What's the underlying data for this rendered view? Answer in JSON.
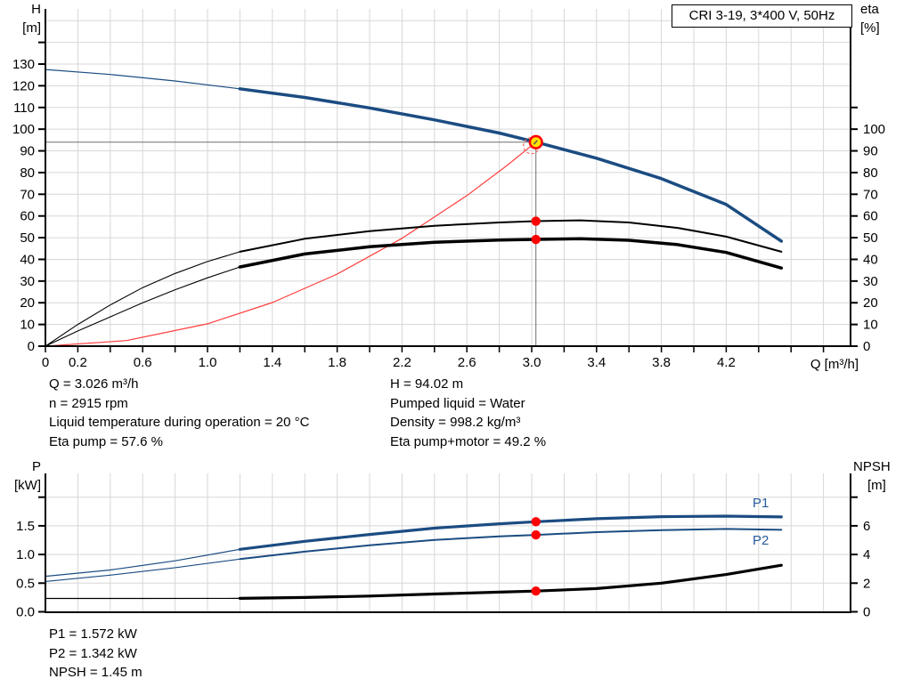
{
  "title_box": {
    "label": "CRI 3-19, 3*400 V, 50Hz"
  },
  "axis_titles": {
    "head": "H",
    "head_unit": "[m]",
    "eta": "eta",
    "eta_unit": "[%]",
    "flow": "Q [m³/h]",
    "power": "P",
    "power_unit": "[kW]",
    "npsh": "NPSH",
    "npsh_unit": "[m]"
  },
  "labels": {
    "p1": "P1",
    "p2": "P2"
  },
  "info_top_left": [
    "Q = 3.026 m³/h",
    "n = 2915 rpm",
    "Liquid temperature during operation = 20 °C",
    "Eta pump = 57.6 %"
  ],
  "info_top_right": [
    "H = 94.02 m",
    "Pumped liquid = Water",
    "Density = 998.2 kg/m³",
    "Eta pump+motor = 49.2 %"
  ],
  "info_bottom": [
    "P1 = 1.572 kW",
    "P2 = 1.342 kW",
    "NPSH = 1.45 m"
  ],
  "colors": {
    "curve_blue": "#1b4c82",
    "curve_black": "#000000",
    "curve_red": "#ff3c3c",
    "dot_red": "#ff0000",
    "duty_fill": "#ffe100",
    "duty_stroke": "#ff0000",
    "grid": "#d7d7d7",
    "crosshair": "#6e6e6e",
    "axis": "#000000",
    "label_blue": "#275b9c"
  },
  "chart_data": [
    {
      "type": "line",
      "title": "CRI 3-19, 3*400 V, 50Hz",
      "xlabel": "Q [m³/h]",
      "x_range": [
        0,
        4.95
      ],
      "x_ticks": [
        {
          "v": 0,
          "l": "0"
        },
        {
          "v": 0.2,
          "l": "0.2"
        },
        {
          "v": 0.4,
          "l": ""
        },
        {
          "v": 0.6,
          "l": "0.6"
        },
        {
          "v": 0.8,
          "l": ""
        },
        {
          "v": 1,
          "l": "1.0"
        },
        {
          "v": 1.2,
          "l": ""
        },
        {
          "v": 1.4,
          "l": "1.4"
        },
        {
          "v": 1.6,
          "l": ""
        },
        {
          "v": 1.8,
          "l": "1.8"
        },
        {
          "v": 2,
          "l": ""
        },
        {
          "v": 2.2,
          "l": "2.2"
        },
        {
          "v": 2.4,
          "l": ""
        },
        {
          "v": 2.6,
          "l": "2.6"
        },
        {
          "v": 2.8,
          "l": ""
        },
        {
          "v": 3,
          "l": "3.0"
        },
        {
          "v": 3.2,
          "l": ""
        },
        {
          "v": 3.4,
          "l": "3.4"
        },
        {
          "v": 3.6,
          "l": ""
        },
        {
          "v": 3.8,
          "l": "3.8"
        },
        {
          "v": 4,
          "l": ""
        },
        {
          "v": 4.2,
          "l": "4.2"
        },
        {
          "v": 4.4,
          "l": ""
        },
        {
          "v": 4.6,
          "l": ""
        },
        {
          "v": 4.8,
          "l": ""
        }
      ],
      "left_axis": {
        "label": "H [m]",
        "range": [
          0,
          155
        ],
        "ticks": [
          {
            "v": 0,
            "l": "0"
          },
          {
            "v": 10,
            "l": "10"
          },
          {
            "v": 20,
            "l": "20"
          },
          {
            "v": 30,
            "l": "30"
          },
          {
            "v": 40,
            "l": "40"
          },
          {
            "v": 50,
            "l": "50"
          },
          {
            "v": 60,
            "l": "60"
          },
          {
            "v": 70,
            "l": "70"
          },
          {
            "v": 80,
            "l": "80"
          },
          {
            "v": 90,
            "l": "90"
          },
          {
            "v": 100,
            "l": "100"
          },
          {
            "v": 110,
            "l": "110"
          },
          {
            "v": 120,
            "l": "120"
          },
          {
            "v": 130,
            "l": "130"
          },
          {
            "v": 140,
            "l": ""
          }
        ]
      },
      "right_axis": {
        "label": "eta [%]",
        "range": [
          0,
          155
        ],
        "ticks": [
          {
            "v": 0,
            "l": "0"
          },
          {
            "v": 10,
            "l": "10"
          },
          {
            "v": 20,
            "l": "20"
          },
          {
            "v": 30,
            "l": "30"
          },
          {
            "v": 40,
            "l": "40"
          },
          {
            "v": 50,
            "l": "50"
          },
          {
            "v": 60,
            "l": "60"
          },
          {
            "v": 70,
            "l": "70"
          },
          {
            "v": 80,
            "l": "80"
          },
          {
            "v": 90,
            "l": "90"
          },
          {
            "v": 100,
            "l": "100"
          },
          {
            "v": 110,
            "l": ""
          }
        ]
      },
      "series": [
        {
          "name": "system-curve",
          "axis": "left",
          "color": "curve_red",
          "width": 1.2,
          "points": [
            [
              0,
              0
            ],
            [
              0.5,
              2.6
            ],
            [
              1.0,
              10.3
            ],
            [
              1.4,
              20.1
            ],
            [
              1.8,
              33.2
            ],
            [
              2.2,
              49.7
            ],
            [
              2.6,
              69.4
            ],
            [
              2.85,
              83.4
            ],
            [
              3.026,
              94.02
            ]
          ]
        },
        {
          "name": "eta-pump-curve",
          "axis": "right",
          "color": "curve_black",
          "width": 2,
          "thin_width": 1.1,
          "split": 1.2,
          "points": [
            [
              0,
              0
            ],
            [
              0.2,
              10
            ],
            [
              0.4,
              19
            ],
            [
              0.6,
              27
            ],
            [
              0.8,
              33.5
            ],
            [
              1.0,
              39
            ],
            [
              1.2,
              43.5
            ],
            [
              1.6,
              49.5
            ],
            [
              2.0,
              53
            ],
            [
              2.4,
              55.5
            ],
            [
              2.8,
              57
            ],
            [
              3.026,
              57.6
            ],
            [
              3.3,
              58
            ],
            [
              3.6,
              57
            ],
            [
              3.9,
              54.5
            ],
            [
              4.2,
              50.5
            ],
            [
              4.54,
              43.5
            ]
          ]
        },
        {
          "name": "eta-pump-motor-curve",
          "axis": "right",
          "color": "curve_black",
          "width": 3.5,
          "thin_width": 1.1,
          "split": 1.2,
          "points": [
            [
              0,
              0
            ],
            [
              0.2,
              7
            ],
            [
              0.4,
              13.5
            ],
            [
              0.6,
              20
            ],
            [
              0.8,
              26
            ],
            [
              1.0,
              31.5
            ],
            [
              1.2,
              36.5
            ],
            [
              1.6,
              42.5
            ],
            [
              2.0,
              45.8
            ],
            [
              2.4,
              47.9
            ],
            [
              2.8,
              48.9
            ],
            [
              3.026,
              49.2
            ],
            [
              3.3,
              49.5
            ],
            [
              3.6,
              48.8
            ],
            [
              3.9,
              46.8
            ],
            [
              4.2,
              43.2
            ],
            [
              4.54,
              36
            ]
          ]
        },
        {
          "name": "head-curve",
          "axis": "left",
          "color": "curve_blue",
          "width": 3.5,
          "thin_width": 1.2,
          "split": 1.2,
          "points": [
            [
              0,
              127.5
            ],
            [
              0.4,
              125.2
            ],
            [
              0.8,
              122.2
            ],
            [
              1.2,
              118.6
            ],
            [
              1.6,
              114.6
            ],
            [
              2.0,
              109.8
            ],
            [
              2.4,
              104.3
            ],
            [
              2.8,
              98.2
            ],
            [
              3.026,
              94.02
            ],
            [
              3.4,
              86.6
            ],
            [
              3.8,
              77.2
            ],
            [
              4.2,
              65.3
            ],
            [
              4.54,
              48.4
            ]
          ]
        }
      ],
      "duty_point": {
        "q": 3.026,
        "h": 94.02
      },
      "marker_dots": [
        {
          "q": 3.026,
          "axis": "right",
          "v": 57.6
        },
        {
          "q": 3.026,
          "axis": "right",
          "v": 49.2
        }
      ]
    },
    {
      "type": "line",
      "xlabel": "",
      "x_range": [
        0,
        4.95
      ],
      "left_axis": {
        "label": "P [kW]",
        "range": [
          0,
          2.4
        ],
        "ticks": [
          {
            "v": 0,
            "l": "0.0"
          },
          {
            "v": 0.5,
            "l": "0.5"
          },
          {
            "v": 1,
            "l": "1.0"
          },
          {
            "v": 1.5,
            "l": "1.5"
          },
          {
            "v": 2,
            "l": ""
          }
        ]
      },
      "right_axis": {
        "label": "NPSH [m]",
        "range": [
          0,
          9.6
        ],
        "ticks": [
          {
            "v": 0,
            "l": "0"
          },
          {
            "v": 2,
            "l": "2"
          },
          {
            "v": 4,
            "l": "4"
          },
          {
            "v": 6,
            "l": "6"
          },
          {
            "v": 8,
            "l": ""
          }
        ]
      },
      "series": [
        {
          "name": "npsh-curve",
          "axis": "right",
          "color": "curve_black",
          "width": 3.2,
          "thin_width": 1.2,
          "split": 1.2,
          "points": [
            [
              0,
              0.93
            ],
            [
              0.6,
              0.93
            ],
            [
              1.2,
              0.94
            ],
            [
              1.6,
              1.0
            ],
            [
              2.0,
              1.1
            ],
            [
              2.4,
              1.24
            ],
            [
              2.8,
              1.37
            ],
            [
              3.026,
              1.45
            ],
            [
              3.4,
              1.62
            ],
            [
              3.8,
              2.0
            ],
            [
              4.2,
              2.6
            ],
            [
              4.54,
              3.25
            ]
          ]
        },
        {
          "name": "p2-curve",
          "axis": "left",
          "color": "curve_blue",
          "width": 2,
          "thin_width": 1.1,
          "split": 1.2,
          "points": [
            [
              0,
              0.53
            ],
            [
              0.4,
              0.64
            ],
            [
              0.8,
              0.77
            ],
            [
              1.2,
              0.92
            ],
            [
              1.6,
              1.05
            ],
            [
              2.0,
              1.16
            ],
            [
              2.4,
              1.255
            ],
            [
              2.8,
              1.315
            ],
            [
              3.026,
              1.342
            ],
            [
              3.4,
              1.39
            ],
            [
              3.8,
              1.425
            ],
            [
              4.2,
              1.445
            ],
            [
              4.54,
              1.43
            ]
          ]
        },
        {
          "name": "p1-curve",
          "axis": "left",
          "color": "curve_blue",
          "width": 3.2,
          "thin_width": 1.2,
          "split": 1.2,
          "points": [
            [
              0,
              0.62
            ],
            [
              0.4,
              0.73
            ],
            [
              0.8,
              0.89
            ],
            [
              1.2,
              1.09
            ],
            [
              1.6,
              1.23
            ],
            [
              2.0,
              1.35
            ],
            [
              2.4,
              1.46
            ],
            [
              2.8,
              1.535
            ],
            [
              3.026,
              1.572
            ],
            [
              3.4,
              1.625
            ],
            [
              3.8,
              1.66
            ],
            [
              4.2,
              1.67
            ],
            [
              4.54,
              1.655
            ]
          ]
        }
      ],
      "marker_dots": [
        {
          "q": 3.026,
          "axis": "left",
          "v": 1.572
        },
        {
          "q": 3.026,
          "axis": "left",
          "v": 1.342
        },
        {
          "q": 3.026,
          "axis": "right",
          "v": 1.45
        }
      ]
    }
  ]
}
